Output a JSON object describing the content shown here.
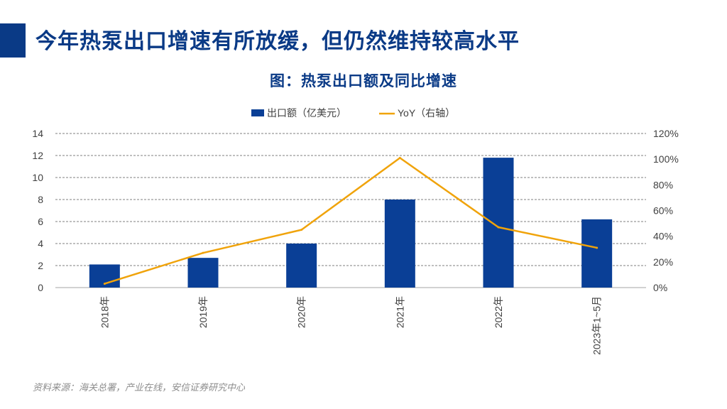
{
  "slide": {
    "title": "今年热泵出口增速有所放缓，但仍然维持较高水平",
    "chart_caption": "图：热泵出口额及同比增速",
    "source": "资料来源：海关总署，产业在线，安信证券研究中心"
  },
  "colors": {
    "bar": "#0a3f96",
    "line": "#f0a30a",
    "title": "#0a3a86",
    "accent": "#0a3a86"
  },
  "chart_data": {
    "type": "bar",
    "title": "图：热泵出口额及同比增速",
    "categories": [
      "2018年",
      "2019年",
      "2020年",
      "2021年",
      "2022年",
      "2023年1~5月"
    ],
    "series": [
      {
        "name": "出口额（亿美元）",
        "type": "bar",
        "axis": "left",
        "values": [
          2.1,
          2.7,
          4.0,
          8.0,
          11.8,
          6.2
        ]
      },
      {
        "name": "YoY（右轴）",
        "type": "line",
        "axis": "right",
        "values": [
          0.03,
          0.27,
          0.45,
          1.01,
          0.47,
          0.31
        ]
      }
    ],
    "y_left": {
      "min": 0,
      "max": 14,
      "step": 2,
      "tick_labels": [
        "0",
        "2",
        "4",
        "6",
        "8",
        "10",
        "12",
        "14"
      ]
    },
    "y_right": {
      "min": 0,
      "max": 1.2,
      "step": 0.2,
      "tick_labels": [
        "0%",
        "20%",
        "40%",
        "60%",
        "80%",
        "100%",
        "120%"
      ]
    },
    "legend_position": "top-center",
    "grid": true
  }
}
